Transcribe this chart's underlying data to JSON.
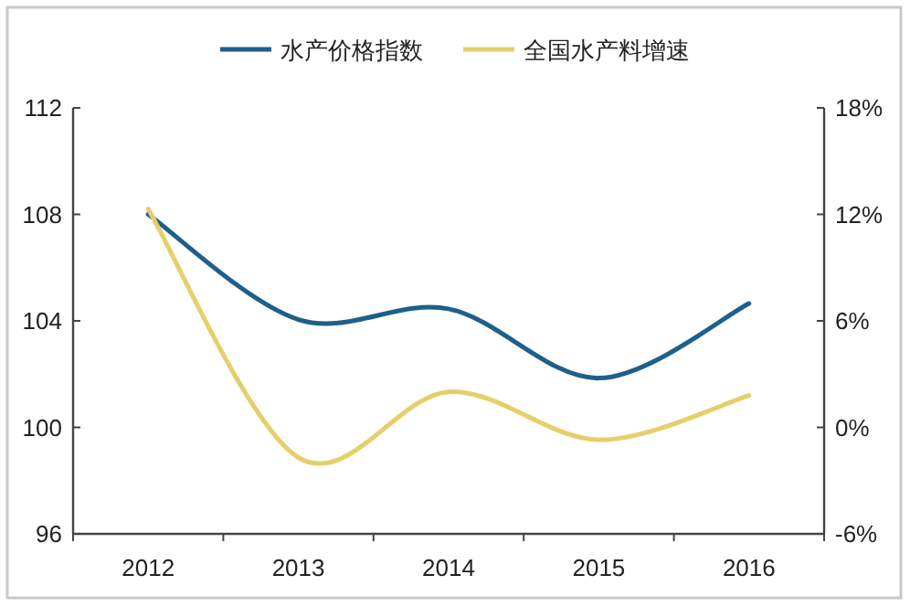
{
  "chart_data": {
    "type": "line",
    "categories": [
      "2012",
      "2013",
      "2014",
      "2015",
      "2016"
    ],
    "series": [
      {
        "name": "水产价格指数",
        "color": "#1f5f8b",
        "values": [
          108.0,
          104.05,
          104.45,
          101.85,
          104.65
        ]
      },
      {
        "name": "全国水产料增速",
        "color": "#e6cf6b",
        "axis": "y2",
        "values": [
          12.3,
          -1.7,
          2.0,
          -0.7,
          1.8
        ]
      }
    ],
    "ylim": [
      96,
      112
    ],
    "yticks": [
      96,
      100,
      104,
      108,
      112
    ],
    "y2lim": [
      -6,
      18
    ],
    "y2ticks": [
      {
        "value": -6,
        "label": "-6%"
      },
      {
        "value": 0,
        "label": "0%"
      },
      {
        "value": 6,
        "label": "6%"
      },
      {
        "value": 12,
        "label": "12%"
      },
      {
        "value": 18,
        "label": "18%"
      }
    ],
    "legend": "top",
    "marker": "none",
    "line_style": "solid"
  }
}
